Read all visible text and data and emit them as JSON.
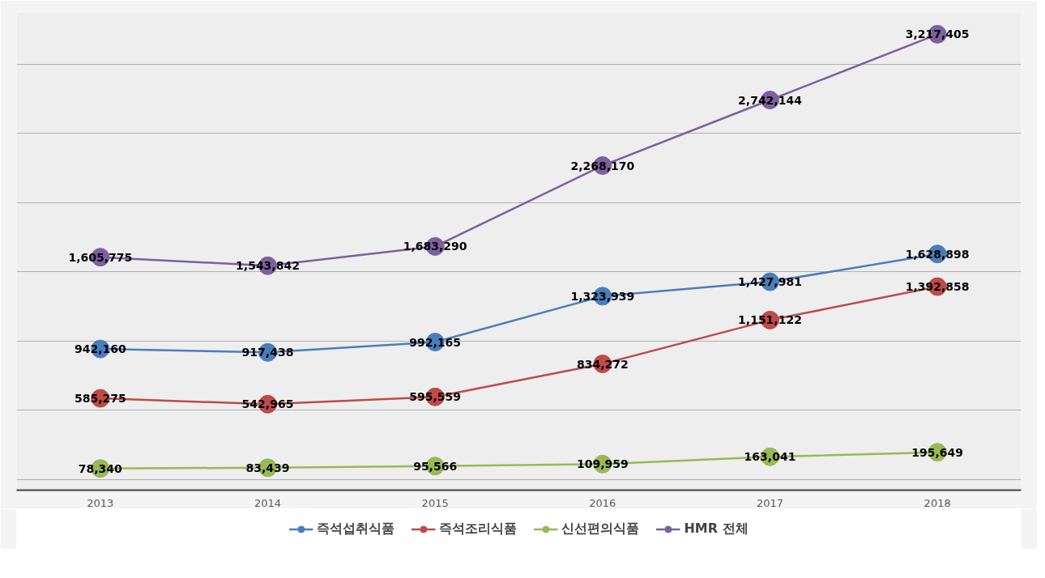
{
  "chart_data": {
    "type": "line",
    "categories": [
      "2013",
      "2014",
      "2015",
      "2016",
      "2017",
      "2018"
    ],
    "series": [
      {
        "name": "즉석섭취식품",
        "color": "#4a7ebb",
        "values": [
          942160,
          917438,
          992165,
          1323939,
          1427981,
          1628898
        ],
        "value_labels": [
          "942,160",
          "917,438",
          "992,165",
          "1,323,939",
          "1,427,981",
          "1,628,898"
        ]
      },
      {
        "name": "즉석조리식품",
        "color": "#be4b48",
        "values": [
          585275,
          542965,
          595559,
          834272,
          1151122,
          1392858
        ],
        "value_labels": [
          "585,275",
          "542,965",
          "595,559",
          "834,272",
          "1,151,122",
          "1,392,858"
        ]
      },
      {
        "name": "신선편의식품",
        "color": "#98b954",
        "values": [
          78340,
          83439,
          95566,
          109959,
          163041,
          195649
        ],
        "value_labels": [
          "78,340",
          "83,439",
          "95,566",
          "109,959",
          "163,041",
          "195,649"
        ]
      },
      {
        "name": "HMR 전체",
        "color": "#7d60a0",
        "values": [
          1605775,
          1543842,
          1683290,
          2268170,
          2742144,
          3217405
        ],
        "value_labels": [
          "1,605,775",
          "1,543,842",
          "1,683,290",
          "2,268,170",
          "2,742,144",
          "3,217,405"
        ]
      }
    ],
    "tick_labels": "x",
    "grid": "y",
    "legend": "bottom",
    "marker": "circle",
    "line_style": "solid"
  }
}
